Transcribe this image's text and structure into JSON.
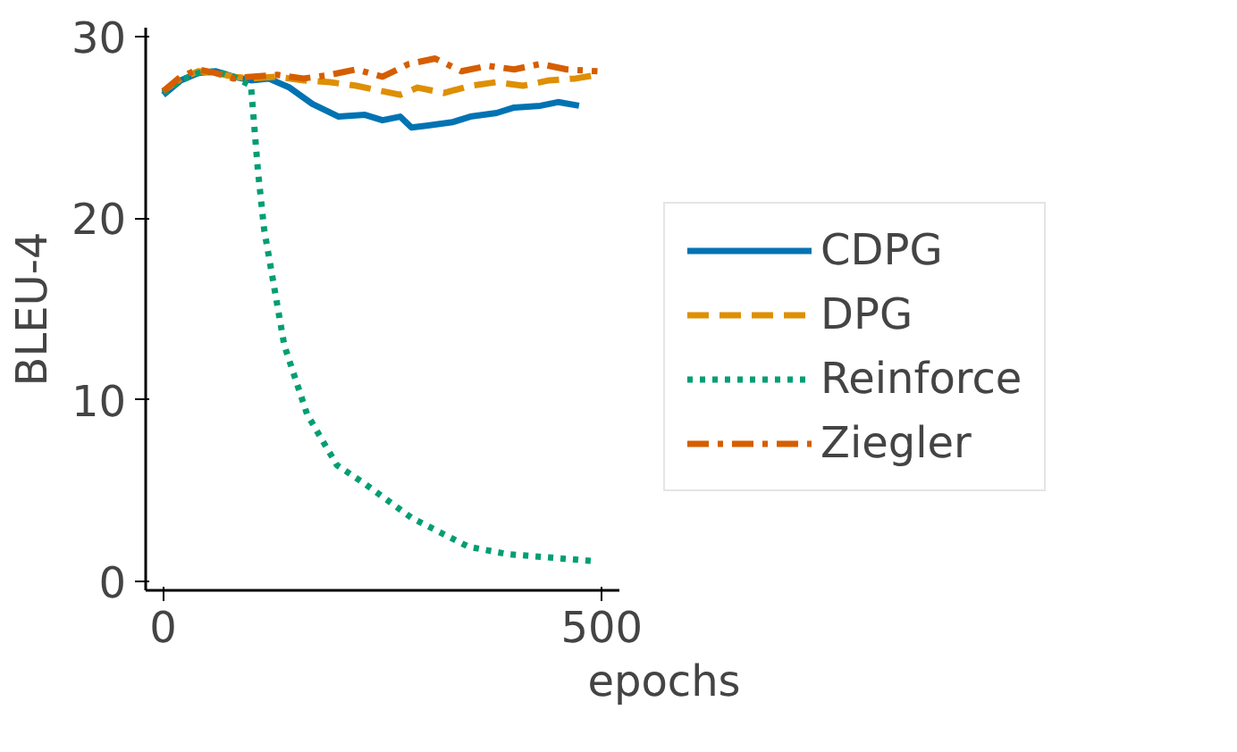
{
  "chart_data": {
    "type": "line",
    "xlabel": "epochs",
    "ylabel": "BLEU-4",
    "xlim": [
      -20,
      520
    ],
    "ylim": [
      -0.5,
      30.5
    ],
    "xticks": [
      0,
      500
    ],
    "yticks": [
      0,
      10,
      20,
      30
    ],
    "grid": false,
    "legend": "right",
    "series": [
      {
        "name": "CDPG",
        "color": "#0173b2",
        "line_style": "solid",
        "x": [
          0,
          20,
          40,
          60,
          80,
          100,
          120,
          144,
          170,
          200,
          230,
          250,
          270,
          283,
          300,
          330,
          350,
          380,
          400,
          430,
          450,
          474
        ],
        "values": [
          26.8,
          27.6,
          28.0,
          28.1,
          27.8,
          27.6,
          27.7,
          27.2,
          26.3,
          25.6,
          25.7,
          25.4,
          25.6,
          25.0,
          25.1,
          25.3,
          25.6,
          25.8,
          26.1,
          26.2,
          26.4,
          26.2
        ]
      },
      {
        "name": "DPG",
        "color": "#de8f05",
        "line_style": "dashed",
        "x": [
          0,
          20,
          40,
          60,
          80,
          100,
          130,
          160,
          190,
          220,
          250,
          270,
          290,
          320,
          350,
          380,
          410,
          440,
          470,
          495
        ],
        "values": [
          27.0,
          27.7,
          28.1,
          28.0,
          27.8,
          27.7,
          27.8,
          27.6,
          27.5,
          27.3,
          27.0,
          26.8,
          27.2,
          26.9,
          27.3,
          27.5,
          27.3,
          27.6,
          27.7,
          27.9
        ]
      },
      {
        "name": "Reinforce",
        "color": "#029e73",
        "line_style": "dotted",
        "x": [
          0,
          20,
          40,
          60,
          80,
          100,
          108,
          115,
          138,
          164,
          198,
          229,
          283,
          348,
          392,
          494
        ],
        "values": [
          26.9,
          27.6,
          28.0,
          28.1,
          27.8,
          27.3,
          22.6,
          19.4,
          13.0,
          9.2,
          6.4,
          5.4,
          3.5,
          1.9,
          1.5,
          1.1
        ]
      },
      {
        "name": "Ziegler",
        "color": "#d55e00",
        "line_style": "dashdot",
        "x": [
          0,
          20,
          40,
          60,
          80,
          100,
          130,
          160,
          190,
          220,
          250,
          280,
          310,
          340,
          370,
          400,
          430,
          460,
          495
        ],
        "values": [
          27.0,
          27.8,
          28.2,
          28.0,
          27.7,
          27.8,
          27.9,
          27.7,
          27.9,
          28.2,
          27.8,
          28.5,
          28.8,
          28.1,
          28.4,
          28.2,
          28.5,
          28.2,
          28.1
        ]
      }
    ]
  }
}
